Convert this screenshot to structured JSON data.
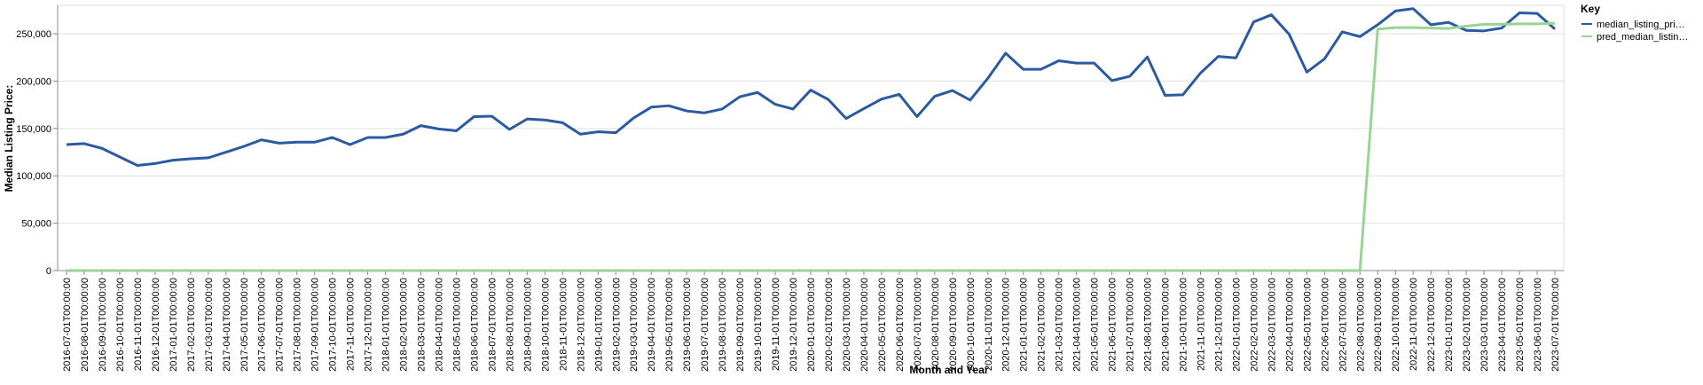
{
  "chart_data": {
    "type": "line",
    "x_label": "Month and Year",
    "y_label": "Median Listing Price:",
    "legend_title": "Key",
    "legend_position": "right",
    "grid": true,
    "categories": [
      "2016-07-01T00:00:00",
      "2016-08-01T00:00:00",
      "2016-09-01T00:00:00",
      "2016-10-01T00:00:00",
      "2016-11-01T00:00:00",
      "2016-12-01T00:00:00",
      "2017-01-01T00:00:00",
      "2017-02-01T00:00:00",
      "2017-03-01T00:00:00",
      "2017-04-01T00:00:00",
      "2017-05-01T00:00:00",
      "2017-06-01T00:00:00",
      "2017-07-01T00:00:00",
      "2017-08-01T00:00:00",
      "2017-09-01T00:00:00",
      "2017-10-01T00:00:00",
      "2017-11-01T00:00:00",
      "2017-12-01T00:00:00",
      "2018-01-01T00:00:00",
      "2018-02-01T00:00:00",
      "2018-03-01T00:00:00",
      "2018-04-01T00:00:00",
      "2018-05-01T00:00:00",
      "2018-06-01T00:00:00",
      "2018-07-01T00:00:00",
      "2018-08-01T00:00:00",
      "2018-09-01T00:00:00",
      "2018-10-01T00:00:00",
      "2018-11-01T00:00:00",
      "2018-12-01T00:00:00",
      "2019-01-01T00:00:00",
      "2019-02-01T00:00:00",
      "2019-03-01T00:00:00",
      "2019-04-01T00:00:00",
      "2019-05-01T00:00:00",
      "2019-06-01T00:00:00",
      "2019-07-01T00:00:00",
      "2019-08-01T00:00:00",
      "2019-09-01T00:00:00",
      "2019-10-01T00:00:00",
      "2019-11-01T00:00:00",
      "2019-12-01T00:00:00",
      "2020-01-01T00:00:00",
      "2020-02-01T00:00:00",
      "2020-03-01T00:00:00",
      "2020-04-01T00:00:00",
      "2020-05-01T00:00:00",
      "2020-06-01T00:00:00",
      "2020-07-01T00:00:00",
      "2020-08-01T00:00:00",
      "2020-09-01T00:00:00",
      "2020-10-01T00:00:00",
      "2020-11-01T00:00:00",
      "2020-12-01T00:00:00",
      "2021-01-01T00:00:00",
      "2021-02-01T00:00:00",
      "2021-03-01T00:00:00",
      "2021-04-01T00:00:00",
      "2021-05-01T00:00:00",
      "2021-06-01T00:00:00",
      "2021-07-01T00:00:00",
      "2021-08-01T00:00:00",
      "2021-09-01T00:00:00",
      "2021-10-01T00:00:00",
      "2021-11-01T00:00:00",
      "2021-12-01T00:00:00",
      "2022-01-01T00:00:00",
      "2022-02-01T00:00:00",
      "2022-03-01T00:00:00",
      "2022-04-01T00:00:00",
      "2022-05-01T00:00:00",
      "2022-06-01T00:00:00",
      "2022-07-01T00:00:00",
      "2022-08-01T00:00:00",
      "2022-09-01T00:00:00",
      "2022-10-01T00:00:00",
      "2022-11-01T00:00:00",
      "2022-12-01T00:00:00",
      "2023-01-01T00:00:00",
      "2023-02-01T00:00:00",
      "2023-03-01T00:00:00",
      "2023-04-01T00:00:00",
      "2023-05-01T00:00:00",
      "2023-06-01T00:00:00",
      "2023-07-01T00:00:00"
    ],
    "series": [
      {
        "name": "median_listing_pri…",
        "color": "#2c5aa0",
        "values": [
          133000,
          134000,
          129000,
          120000,
          111000,
          113000,
          116500,
          118000,
          119000,
          125000,
          131000,
          138000,
          134500,
          135500,
          135500,
          140500,
          133000,
          140500,
          140500,
          144000,
          153000,
          149500,
          147500,
          162500,
          163000,
          149000,
          160000,
          159000,
          156000,
          144000,
          146500,
          145500,
          161000,
          172500,
          174000,
          168500,
          166500,
          170500,
          183500,
          188000,
          175500,
          170500,
          190500,
          180500,
          160500,
          171000,
          181000,
          186000,
          162500,
          184000,
          190000,
          180000,
          203000,
          229500,
          212500,
          212500,
          221500,
          219000,
          219000,
          200500,
          205000,
          225500,
          185000,
          185500,
          208500,
          226000,
          224500,
          262500,
          270000,
          249500,
          209500,
          223500,
          252000,
          247000,
          259500,
          274000,
          276500,
          259500,
          262000,
          253500,
          253000,
          256000,
          272000,
          271500,
          255000
        ]
      },
      {
        "name": "pred_median_listin…",
        "color": "#98d594",
        "values": [
          0,
          0,
          0,
          0,
          0,
          0,
          0,
          0,
          0,
          0,
          0,
          0,
          0,
          0,
          0,
          0,
          0,
          0,
          0,
          0,
          0,
          0,
          0,
          0,
          0,
          0,
          0,
          0,
          0,
          0,
          0,
          0,
          0,
          0,
          0,
          0,
          0,
          0,
          0,
          0,
          0,
          0,
          0,
          0,
          0,
          0,
          0,
          0,
          0,
          0,
          0,
          0,
          0,
          0,
          0,
          0,
          0,
          0,
          0,
          0,
          0,
          0,
          0,
          0,
          0,
          0,
          0,
          0,
          0,
          0,
          0,
          0,
          0,
          0,
          255000,
          256500,
          256500,
          256000,
          255500,
          258000,
          260000,
          260000,
          260500,
          260500,
          261000
        ]
      }
    ],
    "ylim": [
      0,
      280000
    ],
    "yticks": [
      0,
      {
        "value": 50000,
        "label": "50,000"
      },
      {
        "value": 100000,
        "label": "100,000"
      },
      {
        "value": 150000,
        "label": "150,000"
      },
      {
        "value": 200000,
        "label": "200,000"
      },
      {
        "value": 250000,
        "label": "250,000"
      }
    ]
  }
}
